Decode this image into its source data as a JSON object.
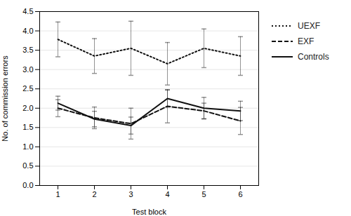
{
  "chart_data": {
    "type": "line",
    "x": [
      1,
      2,
      3,
      4,
      5,
      6
    ],
    "series": [
      {
        "name": "UEXF",
        "color": "#111111",
        "line_style": "dotted",
        "values": [
          3.78,
          3.35,
          3.55,
          3.15,
          3.55,
          3.35
        ],
        "errors": [
          0.45,
          0.45,
          0.7,
          0.55,
          0.5,
          0.5
        ]
      },
      {
        "name": "EXF",
        "color": "#111111",
        "line_style": "dashed",
        "values": [
          2.0,
          1.75,
          1.6,
          2.05,
          1.93,
          1.67
        ],
        "errors": [
          0.22,
          0.28,
          0.4,
          0.43,
          0.2,
          0.35
        ]
      },
      {
        "name": "Controls",
        "color": "#111111",
        "line_style": "solid",
        "values": [
          2.13,
          1.72,
          1.55,
          2.25,
          2.0,
          1.93
        ],
        "errors": [
          0.18,
          0.2,
          0.22,
          0.22,
          0.28,
          0.25
        ]
      }
    ],
    "xlabel": "Test block",
    "ylabel": "No. of commission errors",
    "xlim": [
      0.5,
      6.5
    ],
    "xticks": [
      1,
      2,
      3,
      4,
      5,
      6
    ],
    "ylim": [
      0.0,
      4.5
    ],
    "yticks": [
      {
        "value": 0,
        "label": "0.0"
      },
      0.5,
      {
        "value": 1,
        "label": "1.0"
      },
      1.5,
      {
        "value": 2,
        "label": "2.0"
      },
      2.5,
      {
        "value": 3,
        "label": "3.0"
      },
      3.5,
      {
        "value": 4,
        "label": "4.0"
      },
      4.5
    ],
    "grid": true,
    "legend": "right"
  }
}
